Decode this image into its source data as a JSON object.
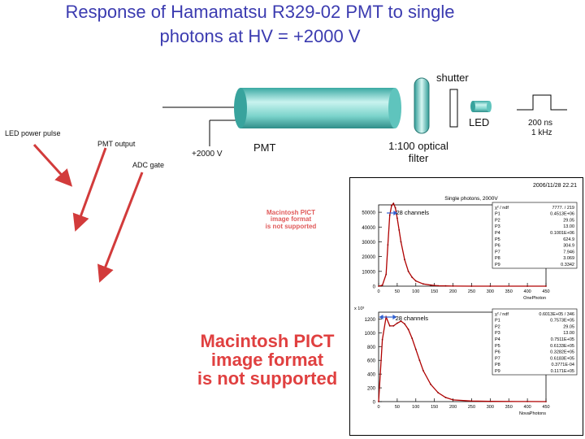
{
  "title_line1": "Response of Hamamatsu R329-02 PMT to single",
  "title_line2": "photons at HV = +2000 V",
  "diagram": {
    "shutter": "shutter",
    "led": "LED",
    "pulse_width": "200 ns",
    "pulse_rate": "1 kHz",
    "led_power_pulse": "LED power pulse",
    "pmt_output": "PMT output",
    "adc_gate": "ADC gate",
    "hv": "+2000 V",
    "pmt": "PMT",
    "filter_line1": "1:100 optical",
    "filter_line2": "filter"
  },
  "pict_small": [
    "Macintosh PICT",
    "image format",
    "is not supported"
  ],
  "pict_large": [
    "Macintosh PICT",
    "image format",
    "is not supported"
  ],
  "plot": {
    "header": "2006/11/28 22.21",
    "top": {
      "title": "Single photons, 2000V",
      "xlabel": "OnePhoton",
      "annotation": "28 channels",
      "yticks": [
        "50000",
        "40000",
        "30000",
        "20000",
        "10000",
        "0"
      ],
      "xticks": [
        "0",
        "50",
        "100",
        "150",
        "200",
        "250",
        "300",
        "350",
        "400",
        "450"
      ],
      "stats": [
        [
          "χ² / ndf",
          "7777. / 219"
        ],
        [
          "P1",
          "0.4513E+06"
        ],
        [
          "P2",
          "29.05"
        ],
        [
          "P3",
          "13.00"
        ],
        [
          "P4",
          "0.1001E+06"
        ],
        [
          "P5",
          "624.9"
        ],
        [
          "P6",
          "304.9"
        ],
        [
          "P7",
          "7.946"
        ],
        [
          "P8",
          "3.069"
        ],
        [
          "P9",
          "0.3342"
        ]
      ]
    },
    "bottom": {
      "scale": "x 10³",
      "xlabel": "NovaPhotons",
      "annotation": "28 channels",
      "yticks": [
        "1200",
        "1000",
        "800",
        "600",
        "400",
        "200",
        "0"
      ],
      "xticks": [
        "0",
        "50",
        "100",
        "150",
        "200",
        "250",
        "300",
        "350",
        "400",
        "450"
      ],
      "stats": [
        [
          "χ² / ndf",
          "0.6013E+05 / 346"
        ],
        [
          "P1",
          "0.7573E+05"
        ],
        [
          "P2",
          "29.05"
        ],
        [
          "P3",
          "13.00"
        ],
        [
          "P4",
          "0.7511E+05"
        ],
        [
          "P5",
          "0.6133E+05"
        ],
        [
          "P6",
          "0.3282E+05"
        ],
        [
          "P7",
          "0.6183E+05"
        ],
        [
          "P8",
          "0.3771E-04"
        ],
        [
          "P9",
          "0.1171E+05"
        ]
      ]
    }
  },
  "chart_data": [
    {
      "type": "line",
      "title": "Single photons, 2000V",
      "xlabel": "OnePhoton",
      "ylabel": "",
      "xlim": [
        0,
        450
      ],
      "ylim": [
        0,
        55000
      ],
      "series": [
        {
          "x": [
            0,
            10,
            20,
            25,
            30,
            35,
            40,
            45,
            50,
            55,
            60,
            70,
            80,
            90,
            100,
            120,
            140,
            160,
            180,
            200,
            250,
            300,
            400,
            450
          ],
          "values": [
            0,
            600,
            8000,
            28000,
            48000,
            54500,
            56000,
            53000,
            46000,
            38000,
            30000,
            18000,
            10000,
            6000,
            3500,
            1500,
            700,
            300,
            150,
            60,
            20,
            8,
            2,
            0
          ]
        }
      ]
    },
    {
      "type": "line",
      "title": "",
      "xlabel": "NovaPhotons",
      "ylabel": "",
      "xlim": [
        0,
        450
      ],
      "ylim": [
        0,
        1300
      ],
      "series": [
        {
          "x": [
            0,
            10,
            20,
            30,
            40,
            50,
            60,
            70,
            80,
            90,
            100,
            110,
            120,
            140,
            160,
            180,
            200,
            250,
            300,
            400,
            450
          ],
          "values": [
            0,
            900,
            1230,
            1100,
            1100,
            1140,
            1170,
            1130,
            1050,
            920,
            760,
            600,
            450,
            250,
            130,
            60,
            25,
            8,
            3,
            1,
            0
          ]
        }
      ]
    }
  ]
}
